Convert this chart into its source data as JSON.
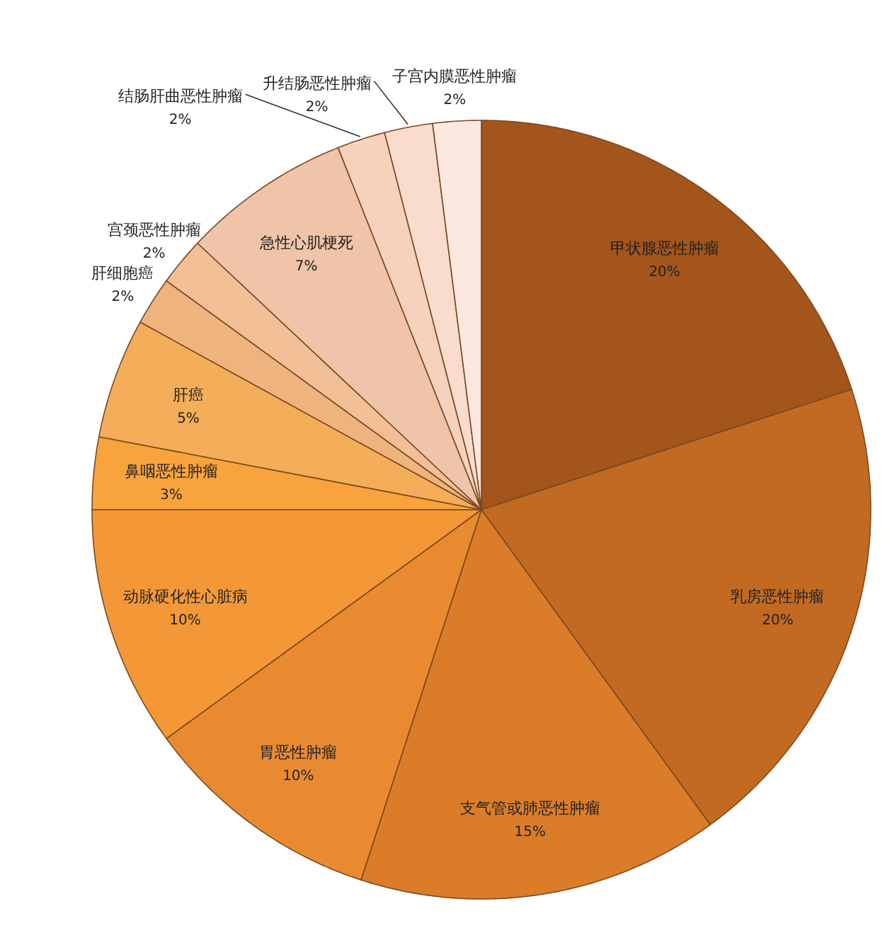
{
  "chart_data": {
    "type": "pie",
    "categories": [
      "甲状腺恶性肿瘤",
      "乳房恶性肿瘤",
      "支气管或肺恶性肿瘤",
      "胃恶性肿瘤",
      "动脉硬化性心脏病",
      "鼻咽恶性肿瘤",
      "肝癌",
      "肝细胞癌",
      "宫颈恶性肿瘤",
      "急性心肌梗死",
      "结肠肝曲恶性肿瘤",
      "升结肠恶性肿瘤",
      "子宫内膜恶性肿瘤"
    ],
    "values": [
      20,
      20,
      15,
      10,
      10,
      3,
      5,
      2,
      2,
      7,
      2,
      2,
      2
    ],
    "colors": [
      "#a3551b",
      "#c26a22",
      "#db7c29",
      "#ea8a30",
      "#f49837",
      "#f9a33c",
      "#f4ad58",
      "#efb47e",
      "#f2bf96",
      "#efc4a8",
      "#f6d1bc",
      "#f9dccd",
      "#fce8df"
    ],
    "value_labels": [
      "20%",
      "20%",
      "15%",
      "10%",
      "10%",
      "3%",
      "5%",
      "2%",
      "2%",
      "7%",
      "2%",
      "2%",
      "2%"
    ]
  }
}
